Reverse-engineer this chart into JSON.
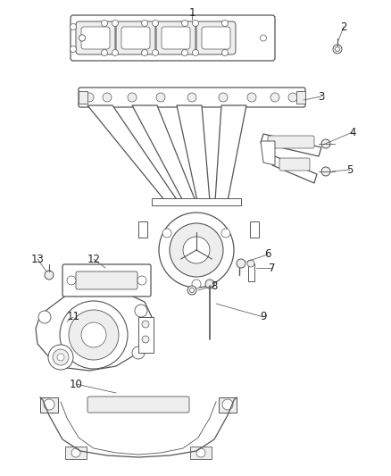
{
  "bg_color": "#ffffff",
  "line_color": "#555555",
  "label_color": "#222222",
  "font_size": 8.5,
  "lw": 0.9,
  "gray": "#cccccc",
  "dark_gray": "#888888",
  "light_gray": "#eeeeee"
}
